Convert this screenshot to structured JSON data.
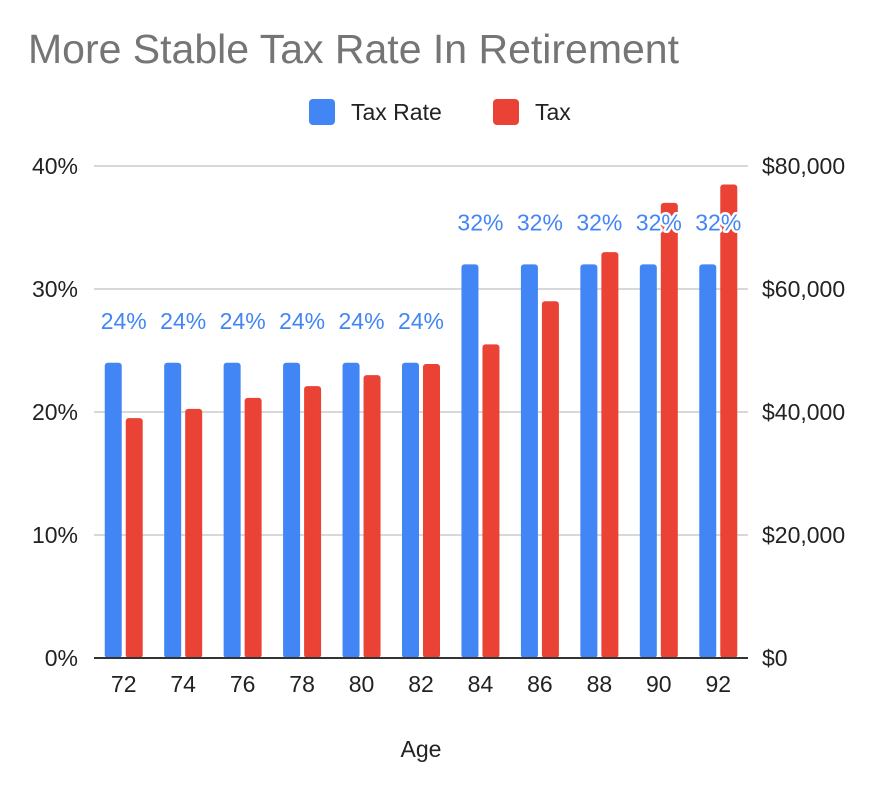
{
  "chart_data": {
    "type": "bar",
    "title": "More Stable Tax Rate In Retirement",
    "xlabel": "Age",
    "ylabel": "",
    "y2label": "",
    "categories": [
      "72",
      "74",
      "76",
      "78",
      "80",
      "82",
      "84",
      "86",
      "88",
      "90",
      "92"
    ],
    "series": [
      {
        "name": "Tax Rate",
        "axis": "left",
        "color": "#4285F4",
        "values": [
          0.24,
          0.24,
          0.24,
          0.24,
          0.24,
          0.24,
          0.32,
          0.32,
          0.32,
          0.32,
          0.32
        ],
        "data_labels": [
          "24%",
          "24%",
          "24%",
          "24%",
          "24%",
          "24%",
          "32%",
          "32%",
          "32%",
          "32%",
          "32%"
        ]
      },
      {
        "name": "Tax",
        "axis": "right",
        "color": "#EA4335",
        "values": [
          39000,
          40500,
          42300,
          44200,
          46000,
          47800,
          51000,
          58000,
          66000,
          74000,
          77000
        ]
      }
    ],
    "ylim": [
      0,
      0.4
    ],
    "y2lim": [
      0,
      80000
    ],
    "yticks": [
      "0%",
      "10%",
      "20%",
      "30%",
      "40%"
    ],
    "y2ticks": [
      "$0",
      "$20,000",
      "$40,000",
      "$60,000",
      "$80,000"
    ],
    "grid": true,
    "legend_position": "top"
  }
}
